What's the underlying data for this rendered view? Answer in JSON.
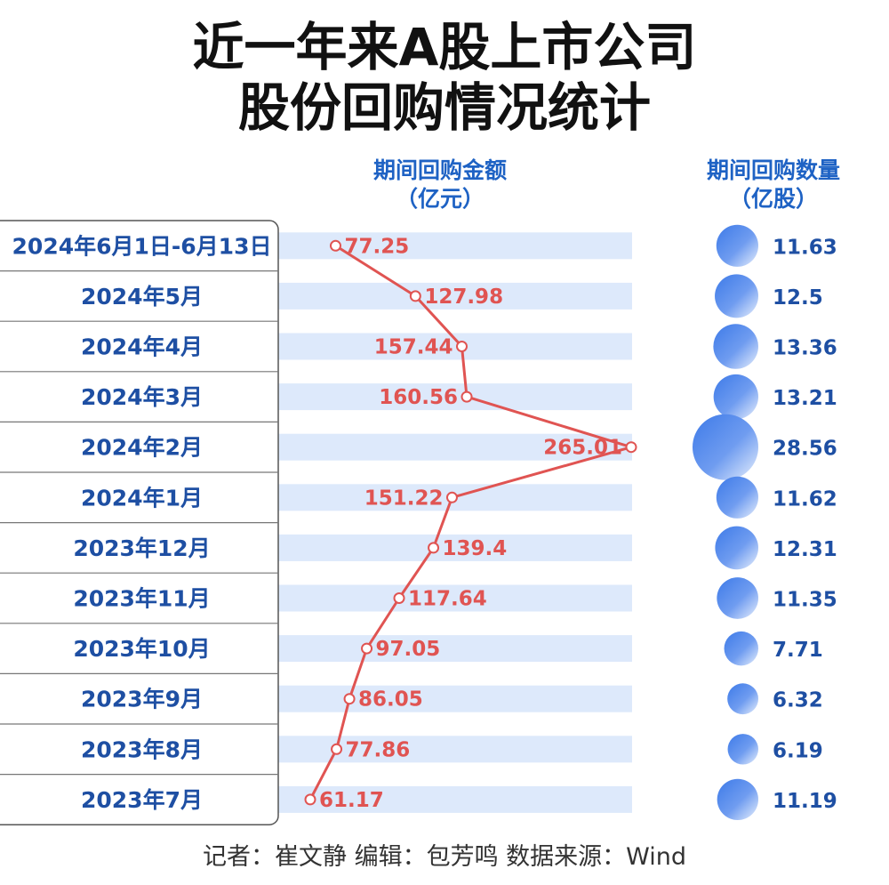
{
  "title_lines": [
    "近一年来A股上市公司",
    "股份回购情况统计"
  ],
  "amount_header": [
    "期间回购金额",
    "（亿元）"
  ],
  "count_header": [
    "期间回购数量",
    "（亿股）"
  ],
  "footer": "记者：崔文静  编辑：包芳鸣  数据来源：Wind",
  "colors": {
    "title": "#111111",
    "header": "#1e62c4",
    "row_label": "#1e4fa3",
    "band": "#dde9fb",
    "line": "#e05452",
    "bubble": "#3d7ae8"
  },
  "chart_data": {
    "type": "line",
    "categories": [
      "2024年6月1日-6月13日",
      "2024年5月",
      "2024年4月",
      "2024年3月",
      "2024年2月",
      "2024年1月",
      "2023年12月",
      "2023年11月",
      "2023年10月",
      "2023年9月",
      "2023年8月",
      "2023年7月"
    ],
    "series": [
      {
        "values": [
          77.25,
          127.98,
          157.44,
          160.56,
          265.01,
          151.22,
          139.4,
          117.64,
          97.05,
          86.05,
          77.86,
          61.17
        ],
        "labels": [
          "77.25",
          "127.98",
          "157.44",
          "160.56",
          "265.01",
          "151.22",
          "139.4",
          "117.64",
          "97.05",
          "86.05",
          "77.86",
          "61.17"
        ]
      },
      {
        "type": "bubble",
        "values": [
          11.63,
          12.5,
          13.36,
          13.21,
          28.56,
          11.62,
          12.31,
          11.35,
          7.71,
          6.32,
          6.19,
          11.19
        ],
        "labels": [
          "11.63",
          "12.5",
          "13.36",
          "13.21",
          "28.56",
          "11.62",
          "12.31",
          "11.35",
          "7.71",
          "6.32",
          "6.19",
          "11.19"
        ]
      }
    ],
    "amount_axis_range": [
      0,
      265.01
    ],
    "bubble_max": 28.56,
    "grid": false
  }
}
